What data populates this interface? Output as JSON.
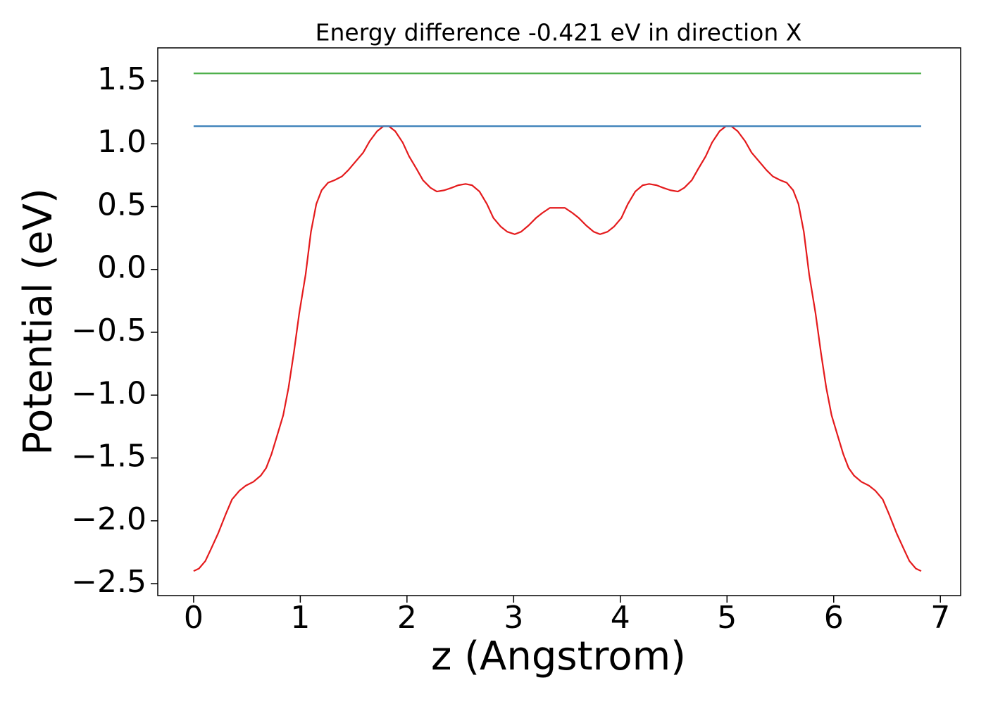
{
  "chart_data": {
    "type": "line",
    "title": "Energy difference -0.421 eV in direction X",
    "x_label": "z (Angstrom)",
    "y_label": "Potential (eV)",
    "xlim": [
      -0.336,
      7.19
    ],
    "ylim": [
      -2.595,
      1.763
    ],
    "xticks": [
      0,
      1,
      2,
      3,
      4,
      5,
      6,
      7
    ],
    "yticks": [
      {
        "value": -2.5,
        "label": "−2.5"
      },
      {
        "value": -2.0,
        "label": "−2.0"
      },
      {
        "value": -1.5,
        "label": "−1.5"
      },
      {
        "value": -1.0,
        "label": "−1.0"
      },
      {
        "value": -0.5,
        "label": "−0.5"
      },
      {
        "value": 0,
        "label": "0.0"
      },
      0.5,
      {
        "value": 1.0,
        "label": "1.0"
      },
      1.5
    ],
    "grid": false,
    "series": [
      {
        "color": "#e41a1c",
        "x": [
          0.0,
          0.05,
          0.11,
          0.16,
          0.23,
          0.3,
          0.36,
          0.43,
          0.49,
          0.56,
          0.63,
          0.68,
          0.73,
          0.78,
          0.84,
          0.89,
          0.94,
          0.99,
          1.05,
          1.1,
          1.15,
          1.2,
          1.26,
          1.32,
          1.39,
          1.45,
          1.52,
          1.59,
          1.65,
          1.72,
          1.78,
          1.83,
          1.89,
          1.96,
          2.02,
          2.09,
          2.15,
          2.22,
          2.28,
          2.35,
          2.42,
          2.48,
          2.55,
          2.61,
          2.68,
          2.75,
          2.81,
          2.88,
          2.94,
          3.01,
          3.07,
          3.14,
          3.21,
          3.27,
          3.34,
          3.4,
          3.48,
          3.55,
          3.61,
          3.68,
          3.75,
          3.81,
          3.88,
          3.94,
          4.01,
          4.07,
          4.14,
          4.21,
          4.27,
          4.34,
          4.4,
          4.47,
          4.54,
          4.6,
          4.67,
          4.73,
          4.8,
          4.86,
          4.93,
          4.99,
          5.04,
          5.1,
          5.17,
          5.23,
          5.3,
          5.37,
          5.43,
          5.5,
          5.56,
          5.62,
          5.67,
          5.72,
          5.77,
          5.83,
          5.88,
          5.93,
          5.98,
          6.04,
          6.09,
          6.14,
          6.19,
          6.26,
          6.33,
          6.39,
          6.46,
          6.52,
          6.59,
          6.66,
          6.71,
          6.77,
          6.82
        ],
        "values": [
          -2.4,
          -2.38,
          -2.32,
          -2.23,
          -2.1,
          -1.95,
          -1.83,
          -1.76,
          -1.72,
          -1.69,
          -1.64,
          -1.58,
          -1.47,
          -1.33,
          -1.16,
          -0.94,
          -0.66,
          -0.35,
          -0.04,
          0.3,
          0.52,
          0.63,
          0.69,
          0.71,
          0.74,
          0.79,
          0.86,
          0.93,
          1.02,
          1.1,
          1.14,
          1.14,
          1.1,
          1.01,
          0.9,
          0.8,
          0.71,
          0.65,
          0.62,
          0.63,
          0.65,
          0.67,
          0.68,
          0.67,
          0.62,
          0.52,
          0.41,
          0.34,
          0.3,
          0.28,
          0.3,
          0.35,
          0.41,
          0.45,
          0.49,
          0.49,
          0.49,
          0.45,
          0.41,
          0.35,
          0.3,
          0.28,
          0.3,
          0.34,
          0.41,
          0.52,
          0.62,
          0.67,
          0.68,
          0.67,
          0.65,
          0.63,
          0.62,
          0.65,
          0.71,
          0.8,
          0.9,
          1.01,
          1.1,
          1.14,
          1.14,
          1.1,
          1.02,
          0.93,
          0.86,
          0.79,
          0.74,
          0.71,
          0.69,
          0.63,
          0.52,
          0.3,
          -0.04,
          -0.35,
          -0.66,
          -0.94,
          -1.16,
          -1.33,
          -1.47,
          -1.58,
          -1.64,
          -1.69,
          -1.72,
          -1.76,
          -1.83,
          -1.95,
          -2.1,
          -2.23,
          -2.32,
          -2.38,
          -2.4
        ]
      },
      {
        "color": "#377eb8",
        "x": [
          0,
          6.82
        ],
        "values": [
          1.14,
          1.14
        ]
      },
      {
        "color": "#4daf4a",
        "x": [
          0,
          6.82
        ],
        "values": [
          1.56,
          1.56
        ]
      }
    ]
  }
}
